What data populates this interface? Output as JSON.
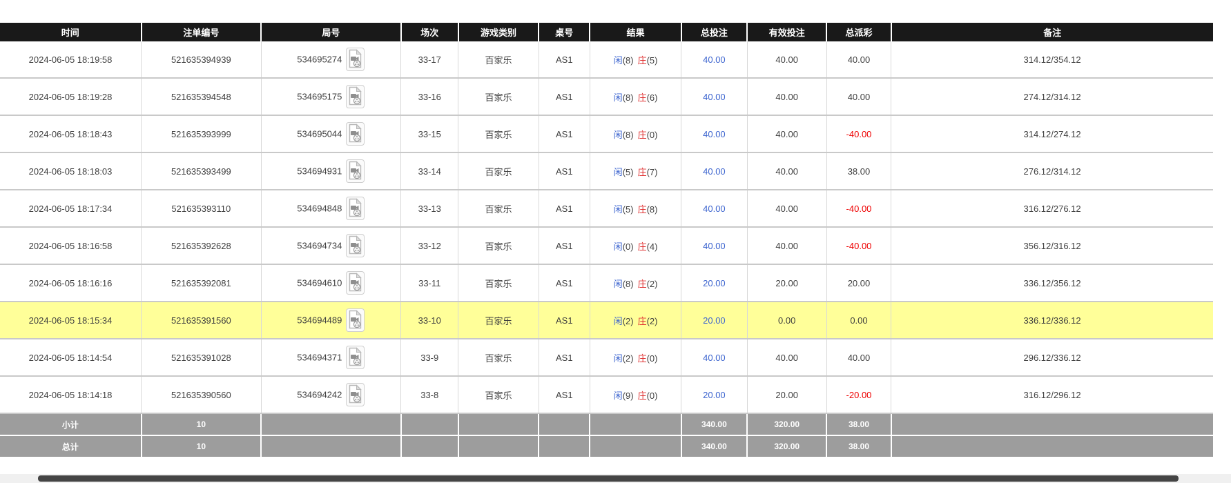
{
  "table": {
    "columns": [
      {
        "key": "time",
        "label": "时间"
      },
      {
        "key": "bet_id",
        "label": "注单编号"
      },
      {
        "key": "round",
        "label": "局号"
      },
      {
        "key": "session",
        "label": "场次"
      },
      {
        "key": "game",
        "label": "游戏类别"
      },
      {
        "key": "table_no",
        "label": "桌号"
      },
      {
        "key": "result",
        "label": "结果"
      },
      {
        "key": "total_bet",
        "label": "总投注"
      },
      {
        "key": "valid_bet",
        "label": "有效投注"
      },
      {
        "key": "payout",
        "label": "总派彩"
      },
      {
        "key": "remark",
        "label": "备注"
      }
    ],
    "rows": [
      {
        "time": "2024-06-05 18:19:58",
        "bet_id": "521635394939",
        "round": "534695274",
        "session": "33-17",
        "game": "百家乐",
        "table_no": "AS1",
        "player_label": "闲",
        "player_score": "(8)",
        "banker_label": "庄",
        "banker_score": "(5)",
        "total_bet": "40.00",
        "valid_bet": "40.00",
        "payout": "40.00",
        "remark": "314.12/354.12",
        "highlight": false
      },
      {
        "time": "2024-06-05 18:19:28",
        "bet_id": "521635394548",
        "round": "534695175",
        "session": "33-16",
        "game": "百家乐",
        "table_no": "AS1",
        "player_label": "闲",
        "player_score": "(8)",
        "banker_label": "庄",
        "banker_score": "(6)",
        "total_bet": "40.00",
        "valid_bet": "40.00",
        "payout": "40.00",
        "remark": "274.12/314.12",
        "highlight": false
      },
      {
        "time": "2024-06-05 18:18:43",
        "bet_id": "521635393999",
        "round": "534695044",
        "session": "33-15",
        "game": "百家乐",
        "table_no": "AS1",
        "player_label": "闲",
        "player_score": "(8)",
        "banker_label": "庄",
        "banker_score": "(0)",
        "total_bet": "40.00",
        "valid_bet": "40.00",
        "payout": "-40.00",
        "remark": "314.12/274.12",
        "highlight": false
      },
      {
        "time": "2024-06-05 18:18:03",
        "bet_id": "521635393499",
        "round": "534694931",
        "session": "33-14",
        "game": "百家乐",
        "table_no": "AS1",
        "player_label": "闲",
        "player_score": "(5)",
        "banker_label": "庄",
        "banker_score": "(7)",
        "total_bet": "40.00",
        "valid_bet": "40.00",
        "payout": "38.00",
        "remark": "276.12/314.12",
        "highlight": false
      },
      {
        "time": "2024-06-05 18:17:34",
        "bet_id": "521635393110",
        "round": "534694848",
        "session": "33-13",
        "game": "百家乐",
        "table_no": "AS1",
        "player_label": "闲",
        "player_score": "(5)",
        "banker_label": "庄",
        "banker_score": "(8)",
        "total_bet": "40.00",
        "valid_bet": "40.00",
        "payout": "-40.00",
        "remark": "316.12/276.12",
        "highlight": false
      },
      {
        "time": "2024-06-05 18:16:58",
        "bet_id": "521635392628",
        "round": "534694734",
        "session": "33-12",
        "game": "百家乐",
        "table_no": "AS1",
        "player_label": "闲",
        "player_score": "(0)",
        "banker_label": "庄",
        "banker_score": "(4)",
        "total_bet": "40.00",
        "valid_bet": "40.00",
        "payout": "-40.00",
        "remark": "356.12/316.12",
        "highlight": false
      },
      {
        "time": "2024-06-05 18:16:16",
        "bet_id": "521635392081",
        "round": "534694610",
        "session": "33-11",
        "game": "百家乐",
        "table_no": "AS1",
        "player_label": "闲",
        "player_score": "(8)",
        "banker_label": "庄",
        "banker_score": "(2)",
        "total_bet": "20.00",
        "valid_bet": "20.00",
        "payout": "20.00",
        "remark": "336.12/356.12",
        "highlight": false
      },
      {
        "time": "2024-06-05 18:15:34",
        "bet_id": "521635391560",
        "round": "534694489",
        "session": "33-10",
        "game": "百家乐",
        "table_no": "AS1",
        "player_label": "闲",
        "player_score": "(2)",
        "banker_label": "庄",
        "banker_score": "(2)",
        "total_bet": "20.00",
        "valid_bet": "0.00",
        "payout": "0.00",
        "remark": "336.12/336.12",
        "highlight": true
      },
      {
        "time": "2024-06-05 18:14:54",
        "bet_id": "521635391028",
        "round": "534694371",
        "session": "33-9",
        "game": "百家乐",
        "table_no": "AS1",
        "player_label": "闲",
        "player_score": "(2)",
        "banker_label": "庄",
        "banker_score": "(0)",
        "total_bet": "40.00",
        "valid_bet": "40.00",
        "payout": "40.00",
        "remark": "296.12/336.12",
        "highlight": false
      },
      {
        "time": "2024-06-05 18:14:18",
        "bet_id": "521635390560",
        "round": "534694242",
        "session": "33-8",
        "game": "百家乐",
        "table_no": "AS1",
        "player_label": "闲",
        "player_score": "(9)",
        "banker_label": "庄",
        "banker_score": "(0)",
        "total_bet": "20.00",
        "valid_bet": "20.00",
        "payout": "-20.00",
        "remark": "316.12/296.12",
        "highlight": false
      }
    ],
    "summary_rows": [
      {
        "label": "小计",
        "count": "10",
        "total_bet": "340.00",
        "valid_bet": "320.00",
        "payout": "38.00"
      },
      {
        "label": "总计",
        "count": "10",
        "total_bet": "340.00",
        "valid_bet": "320.00",
        "payout": "38.00"
      }
    ]
  },
  "icons": {
    "round_video_icon": "video-replay-icon"
  },
  "colors": {
    "header_bg": "#191919",
    "summary_bg": "#9d9d9d",
    "highlight_yellow": "#ffff99",
    "player_blue": "#3c64cf",
    "banker_red": "#e03333",
    "bet_link_blue": "#3c64cf",
    "negative_red": "#ee0000"
  }
}
